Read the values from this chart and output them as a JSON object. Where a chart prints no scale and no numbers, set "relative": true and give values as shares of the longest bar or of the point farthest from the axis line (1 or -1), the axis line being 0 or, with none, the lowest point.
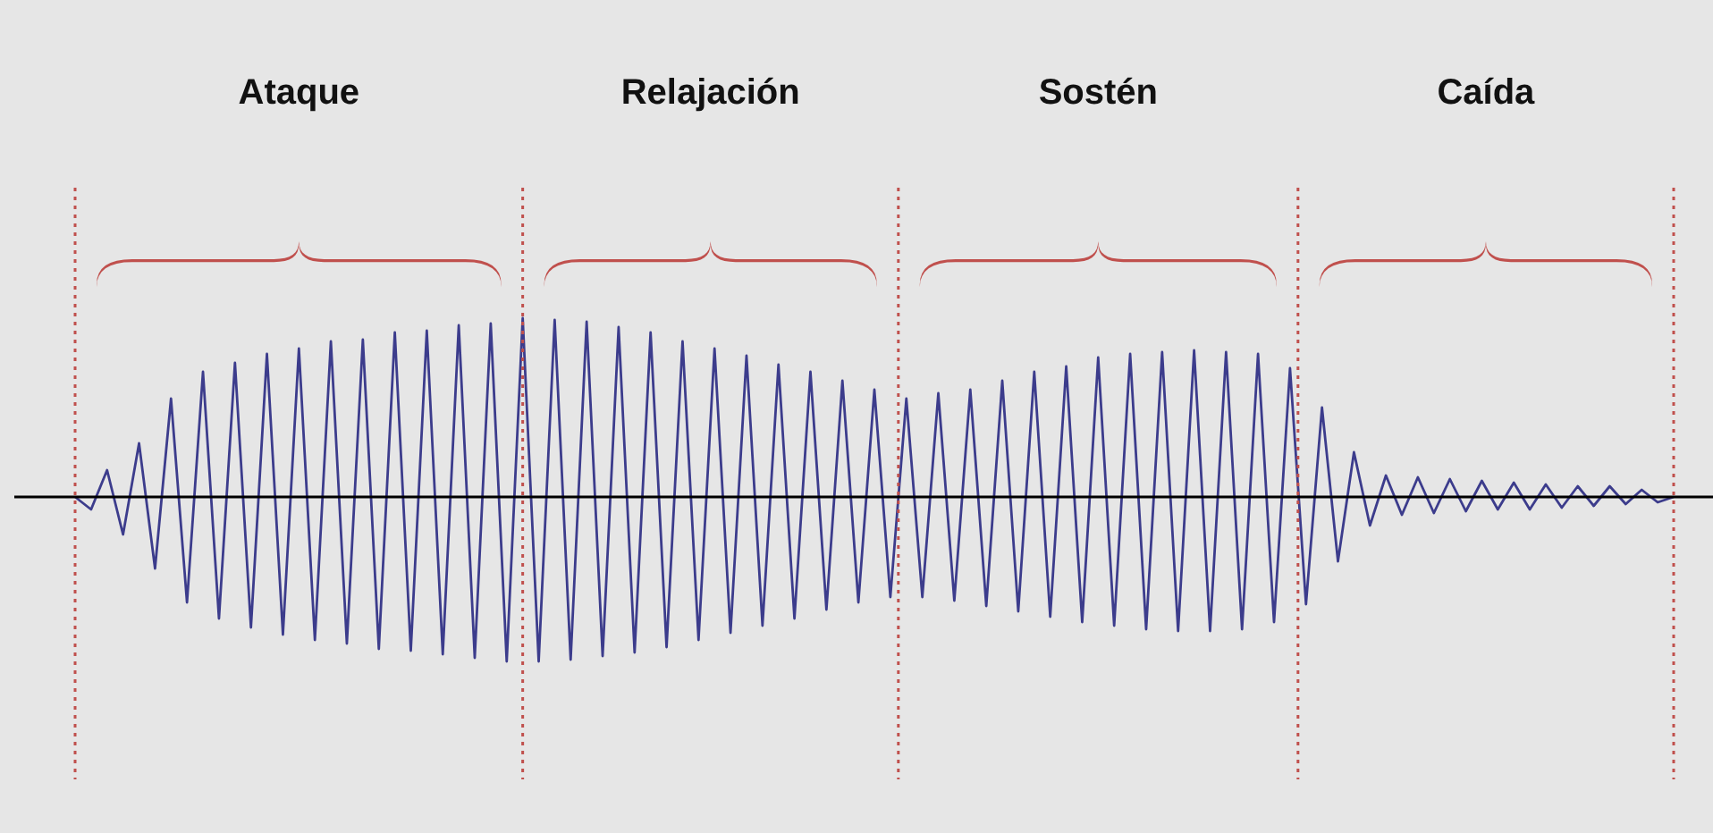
{
  "chart_data": {
    "type": "line",
    "relative": true,
    "grid": "x",
    "marker": "none",
    "line_style": "solid",
    "categories": [
      null,
      null,
      null,
      null,
      null,
      null,
      null,
      null,
      null,
      null,
      null,
      null,
      null,
      null,
      null,
      null,
      null,
      null,
      null,
      null,
      null,
      null,
      null,
      null,
      null,
      null,
      null,
      null,
      null,
      null,
      null,
      null,
      null,
      null,
      null,
      null,
      null,
      null,
      null,
      null,
      null,
      null,
      null,
      null,
      null,
      null,
      null,
      null,
      null,
      null,
      null,
      null,
      null,
      null,
      null,
      null,
      null,
      null,
      null,
      null,
      null,
      null,
      null,
      null,
      null,
      null,
      null,
      null,
      null,
      null,
      null,
      null,
      null,
      null,
      null,
      null,
      null,
      null,
      null,
      null,
      null,
      null,
      null,
      null,
      null,
      null,
      null,
      null,
      null,
      null,
      null,
      null,
      null,
      null,
      null,
      null,
      null,
      null,
      null,
      null,
      null
    ],
    "series": [
      {
        "color": "#3c3c8c",
        "values": [
          0,
          -0.07,
          0.15,
          -0.21,
          0.3,
          -0.4,
          0.55,
          -0.59,
          0.7,
          -0.68,
          0.75,
          -0.73,
          0.8,
          -0.77,
          0.83,
          -0.8,
          0.87,
          -0.82,
          0.88,
          -0.85,
          0.92,
          -0.86,
          0.93,
          -0.88,
          0.96,
          -0.9,
          0.97,
          -0.92,
          1,
          -0.92,
          0.99,
          -0.91,
          0.98,
          -0.89,
          0.95,
          -0.87,
          0.92,
          -0.84,
          0.87,
          -0.8,
          0.83,
          -0.76,
          0.79,
          -0.72,
          0.74,
          -0.68,
          0.7,
          -0.63,
          0.65,
          -0.59,
          0.6,
          -0.56,
          0.55,
          -0.56,
          0.58,
          -0.58,
          0.6,
          -0.61,
          0.65,
          -0.64,
          0.7,
          -0.67,
          0.73,
          -0.7,
          0.78,
          -0.72,
          0.8,
          -0.74,
          0.81,
          -0.75,
          0.82,
          -0.75,
          0.81,
          -0.74,
          0.8,
          -0.7,
          0.72,
          -0.6,
          0.5,
          -0.36,
          0.25,
          -0.16,
          0.12,
          -0.1,
          0.11,
          -0.09,
          0.1,
          -0.08,
          0.09,
          -0.07,
          0.08,
          -0.07,
          0.07,
          -0.06,
          0.06,
          -0.05,
          0.06,
          -0.04,
          0.04,
          -0.03,
          0
        ]
      }
    ],
    "annotations": [
      "Ataque",
      "Relajación",
      "Sostén",
      "Caída"
    ]
  }
}
